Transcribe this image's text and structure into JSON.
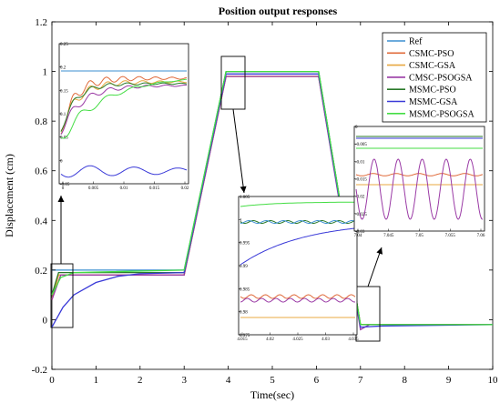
{
  "chart_data": {
    "type": "line",
    "title": "Position output responses",
    "xlabel": "Time(sec)",
    "ylabel": "Displacement (cm)",
    "xlim": [
      0,
      10
    ],
    "ylim": [
      -0.2,
      1.2
    ],
    "xticks": [
      0,
      1,
      2,
      3,
      4,
      5,
      6,
      7,
      8,
      9,
      10
    ],
    "yticks": [
      -0.2,
      0,
      0.2,
      0.4,
      0.6,
      0.8,
      1,
      1.2
    ],
    "grid": false,
    "legend_position": "top-right",
    "series": [
      {
        "name": "Ref",
        "color": "#3b8fd0",
        "x": [
          0,
          3,
          3.95,
          6.05,
          7,
          10
        ],
        "y": [
          0.2,
          0.2,
          1.0,
          1.0,
          -0.02,
          -0.02
        ]
      },
      {
        "name": "CSMC-PSO",
        "color": "#e06a3a",
        "x": [
          0,
          0.15,
          3,
          3.95,
          6.05,
          7,
          7.3,
          10
        ],
        "y": [
          0.08,
          0.18,
          0.18,
          0.98,
          0.98,
          -0.02,
          -0.02,
          -0.02
        ]
      },
      {
        "name": "CSMC-GSA",
        "color": "#e8a840",
        "x": [
          0,
          0.15,
          3,
          3.95,
          6.05,
          7,
          7.3,
          10
        ],
        "y": [
          0.08,
          0.18,
          0.18,
          0.98,
          0.98,
          -0.02,
          -0.02,
          -0.02
        ]
      },
      {
        "name": "CMSC-PSOGSA",
        "color": "#9a3aa5",
        "x": [
          0,
          0.2,
          3,
          3.95,
          6.05,
          7,
          7.2,
          10
        ],
        "y": [
          0.08,
          0.18,
          0.18,
          0.98,
          0.98,
          -0.04,
          -0.02,
          -0.02
        ]
      },
      {
        "name": "MSMC-PSO",
        "color": "#2a7a2a",
        "x": [
          0,
          0.15,
          3,
          3.95,
          6.05,
          7,
          7.2,
          10
        ],
        "y": [
          0.1,
          0.19,
          0.19,
          1.0,
          1.0,
          -0.02,
          -0.02,
          -0.02
        ]
      },
      {
        "name": "MSMC-GSA",
        "color": "#3a3ad8",
        "x": [
          0,
          0.25,
          0.5,
          1,
          1.5,
          2,
          3,
          3.95,
          6.05,
          7,
          7.5,
          10
        ],
        "y": [
          -0.03,
          0.05,
          0.1,
          0.15,
          0.175,
          0.185,
          0.19,
          0.99,
          0.99,
          -0.03,
          -0.025,
          -0.02
        ]
      },
      {
        "name": "MSMC-PSOGSA",
        "color": "#44dd44",
        "x": [
          0,
          0.2,
          0.5,
          3,
          3.95,
          6.05,
          7,
          7.3,
          10
        ],
        "y": [
          0.1,
          0.17,
          0.19,
          0.2,
          1.0,
          1.0,
          -0.02,
          -0.02,
          -0.02
        ]
      }
    ],
    "insets": [
      {
        "xticks": [
          "0",
          "0.005",
          "0.01",
          "0.015",
          "0.02"
        ],
        "yticks": [
          "0.25",
          "0.2",
          "0.15",
          "0.1",
          "0.05",
          "0",
          "-0.05"
        ]
      },
      {
        "xticks": [
          "4.015",
          "4.02",
          "4.025",
          "4.03",
          "4.035"
        ],
        "yticks": [
          "1.005",
          "1",
          "0.995",
          "0.99",
          "0.985",
          "0.98",
          "0.975"
        ]
      },
      {
        "xticks": [
          "7.04",
          "7.045",
          "7.05",
          "7.055",
          "7.06"
        ],
        "yticks": [
          "0",
          "-0.005",
          "-0.01",
          "-0.015",
          "-0.02",
          "-0.025",
          "-0.03"
        ]
      }
    ]
  }
}
